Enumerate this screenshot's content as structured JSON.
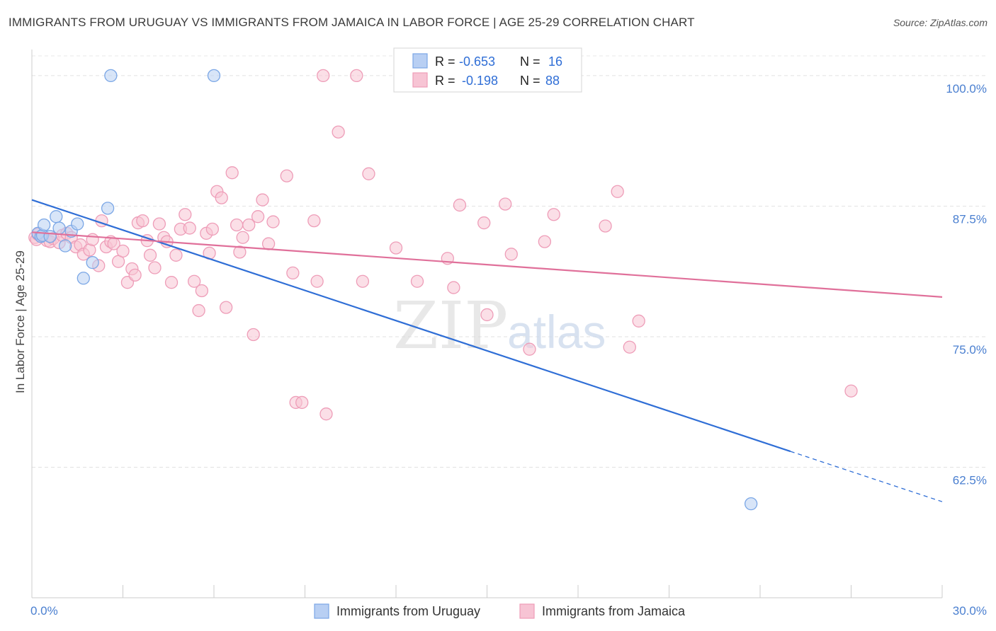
{
  "header": {
    "title": "IMMIGRANTS FROM URUGUAY VS IMMIGRANTS FROM JAMAICA IN LABOR FORCE | AGE 25-29 CORRELATION CHART",
    "source": "Source: ZipAtlas.com"
  },
  "watermark": "ZIPatlas",
  "chart_data": {
    "type": "scatter",
    "ylabel": "In Labor Force | Age 25-29",
    "xlim": [
      0,
      30
    ],
    "ylim": [
      50,
      102.5
    ],
    "y_ticks": [
      {
        "value": 100,
        "label": "100.0%"
      },
      {
        "value": 87.5,
        "label": "87.5%"
      },
      {
        "value": 75,
        "label": "75.0%"
      },
      {
        "value": 62.5,
        "label": "62.5%"
      }
    ],
    "x_tick_labels": {
      "min": "0.0%",
      "max": "30.0%"
    },
    "legend": {
      "r_label": "R =",
      "n_label": "N =",
      "entries": [
        {
          "r": "-0.653",
          "n": "16"
        },
        {
          "r": "-0.198",
          "n": "88"
        }
      ]
    },
    "series": [
      {
        "name": "Immigrants from Uruguay",
        "color": "#7ba7e6",
        "fill": "#b8cff3",
        "line_color": "#2f6ed6",
        "trend": {
          "x0": 0,
          "y0": 88.1,
          "x1": 30,
          "y1": 59.2,
          "solid_until": 25
        },
        "points": [
          [
            0.2,
            84.9
          ],
          [
            0.3,
            84.6
          ],
          [
            0.35,
            84.7
          ],
          [
            0.4,
            85.7
          ],
          [
            0.6,
            84.6
          ],
          [
            0.8,
            86.5
          ],
          [
            0.9,
            85.4
          ],
          [
            1.1,
            83.7
          ],
          [
            1.3,
            85.1
          ],
          [
            1.5,
            85.8
          ],
          [
            1.7,
            80.6
          ],
          [
            2.0,
            82.1
          ],
          [
            2.5,
            87.3
          ],
          [
            2.6,
            100.0
          ],
          [
            6.0,
            100.0
          ],
          [
            23.7,
            59.0
          ]
        ]
      },
      {
        "name": "Immigrants from Jamaica",
        "color": "#ee9db8",
        "fill": "#f7c4d4",
        "line_color": "#e0709a",
        "trend": {
          "x0": 0,
          "y0": 85.0,
          "x1": 30,
          "y1": 78.8
        },
        "points": [
          [
            0.1,
            84.5
          ],
          [
            0.15,
            84.3
          ],
          [
            0.2,
            84.8
          ],
          [
            0.3,
            84.6
          ],
          [
            0.5,
            84.2
          ],
          [
            0.6,
            84.1
          ],
          [
            0.7,
            84.4
          ],
          [
            0.9,
            84.0
          ],
          [
            1.0,
            84.7
          ],
          [
            1.15,
            84.9
          ],
          [
            1.3,
            84.5
          ],
          [
            1.45,
            83.6
          ],
          [
            1.6,
            83.8
          ],
          [
            1.7,
            82.9
          ],
          [
            1.9,
            83.3
          ],
          [
            2.0,
            84.3
          ],
          [
            2.2,
            81.8
          ],
          [
            2.3,
            86.1
          ],
          [
            2.45,
            83.6
          ],
          [
            2.6,
            84.1
          ],
          [
            2.7,
            83.9
          ],
          [
            2.85,
            82.2
          ],
          [
            3.0,
            83.2
          ],
          [
            3.15,
            80.2
          ],
          [
            3.3,
            81.5
          ],
          [
            3.4,
            80.9
          ],
          [
            3.5,
            85.9
          ],
          [
            3.65,
            86.1
          ],
          [
            3.8,
            84.2
          ],
          [
            3.9,
            82.8
          ],
          [
            4.05,
            81.6
          ],
          [
            4.2,
            85.8
          ],
          [
            4.35,
            84.5
          ],
          [
            4.45,
            84.1
          ],
          [
            4.6,
            80.2
          ],
          [
            4.75,
            82.8
          ],
          [
            4.9,
            85.3
          ],
          [
            5.05,
            86.7
          ],
          [
            5.2,
            85.4
          ],
          [
            5.35,
            80.3
          ],
          [
            5.5,
            77.5
          ],
          [
            5.6,
            79.4
          ],
          [
            5.75,
            84.9
          ],
          [
            5.85,
            83.0
          ],
          [
            5.95,
            85.3
          ],
          [
            6.1,
            88.9
          ],
          [
            6.25,
            88.3
          ],
          [
            6.4,
            77.8
          ],
          [
            6.6,
            90.7
          ],
          [
            6.75,
            85.7
          ],
          [
            6.85,
            83.1
          ],
          [
            6.95,
            84.5
          ],
          [
            7.15,
            85.7
          ],
          [
            7.3,
            75.2
          ],
          [
            7.45,
            86.5
          ],
          [
            7.6,
            88.1
          ],
          [
            7.8,
            83.9
          ],
          [
            7.95,
            86.0
          ],
          [
            8.4,
            90.4
          ],
          [
            8.6,
            81.1
          ],
          [
            8.7,
            68.7
          ],
          [
            8.9,
            68.7
          ],
          [
            9.3,
            86.1
          ],
          [
            9.6,
            100.0
          ],
          [
            9.4,
            80.3
          ],
          [
            9.7,
            67.6
          ],
          [
            10.1,
            94.6
          ],
          [
            10.7,
            100.0
          ],
          [
            10.9,
            80.3
          ],
          [
            11.1,
            90.6
          ],
          [
            12.2,
            100.0
          ],
          [
            12.0,
            83.5
          ],
          [
            12.7,
            80.3
          ],
          [
            13.7,
            82.5
          ],
          [
            13.9,
            79.7
          ],
          [
            14.1,
            87.6
          ],
          [
            14.9,
            85.9
          ],
          [
            15.0,
            77.1
          ],
          [
            15.6,
            87.7
          ],
          [
            15.8,
            82.9
          ],
          [
            16.4,
            73.8
          ],
          [
            16.9,
            84.1
          ],
          [
            17.2,
            86.7
          ],
          [
            18.9,
            85.6
          ],
          [
            19.3,
            88.9
          ],
          [
            19.7,
            74.0
          ],
          [
            20.0,
            76.5
          ],
          [
            27.0,
            69.8
          ]
        ]
      }
    ]
  }
}
